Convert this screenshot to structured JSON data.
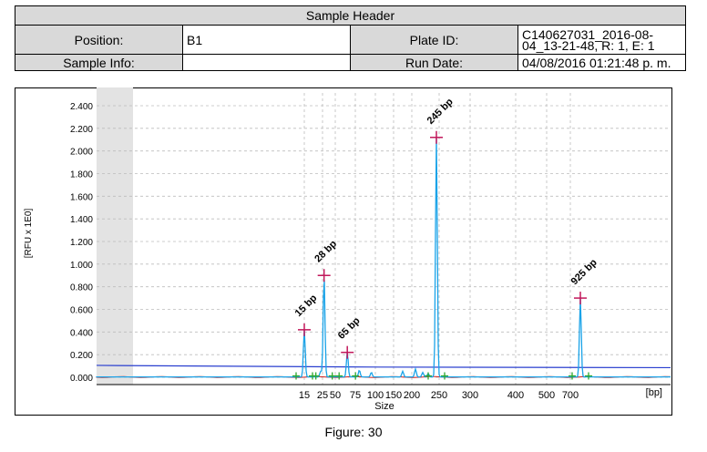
{
  "header": {
    "title": "Sample Header",
    "position_label": "Position:",
    "position_value": "B1",
    "plate_label": "Plate ID:",
    "plate_value": "C140627031_2016-08-04_13-21-48, R: 1, E: 1",
    "sample_info_label": "Sample Info:",
    "sample_info_value": "",
    "run_date_label": "Run Date:",
    "run_date_value": "04/08/2016 01:21:48 p. m."
  },
  "figure_caption": "Figure: 30",
  "colors": {
    "trace": "#1aa3e8",
    "upper_line": "#2a3fcf",
    "lower_line": "#cc2020",
    "peak_marker": "#c2185b",
    "limit_marker": "#2ea82e",
    "shaded": "#e3e3e3",
    "grid": "#bdbdbd"
  },
  "chart_data": {
    "type": "line",
    "xlabel": "Size",
    "ylabel": "[RFU x 1E0]",
    "x_unit": "[bp]",
    "x_ticks": [
      15,
      25,
      50,
      75,
      100,
      150,
      200,
      250,
      300,
      400,
      500,
      700
    ],
    "y_ticks": [
      0,
      0.2,
      0.4,
      0.6,
      0.8,
      1.0,
      1.2,
      1.4,
      1.6,
      1.8,
      2.0,
      2.2,
      2.4
    ],
    "y_tick_labels": [
      "0.000",
      "0.200",
      "0.400",
      "0.600",
      "0.800",
      "1.000",
      "1.200",
      "1.400",
      "1.600",
      "1.800",
      "2.000",
      "2.200",
      "2.400"
    ],
    "ylim": [
      0,
      2.5
    ],
    "grid": true,
    "peaks": [
      {
        "label": "15 bp",
        "size": 15,
        "height": 0.42
      },
      {
        "label": "28 bp",
        "size": 28,
        "height": 0.9
      },
      {
        "label": "65 bp",
        "size": 65,
        "height": 0.22
      },
      {
        "label": "245 bp",
        "size": 245,
        "height": 2.12
      },
      {
        "label": "925 bp",
        "size": 925,
        "height": 0.7
      }
    ]
  }
}
